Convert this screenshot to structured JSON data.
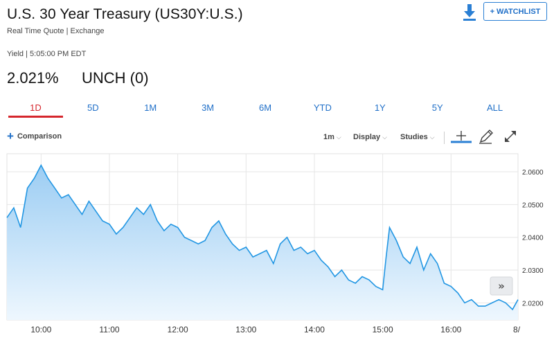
{
  "header": {
    "title": "U.S. 30 Year Treasury (US30Y:U.S.)",
    "subtitle": "Real Time Quote | Exchange",
    "yield_label": "Yield | 5:05:00 PM EDT",
    "price": "2.021%",
    "change": "UNCH (0)",
    "watchlist_label": "+ WATCHLIST"
  },
  "tabs": [
    {
      "label": "1D",
      "active": true
    },
    {
      "label": "5D",
      "active": false
    },
    {
      "label": "1M",
      "active": false
    },
    {
      "label": "3M",
      "active": false
    },
    {
      "label": "6M",
      "active": false
    },
    {
      "label": "YTD",
      "active": false
    },
    {
      "label": "1Y",
      "active": false
    },
    {
      "label": "5Y",
      "active": false
    },
    {
      "label": "ALL",
      "active": false
    }
  ],
  "toolbar": {
    "comparison": "Comparison",
    "interval": "1m",
    "display": "Display",
    "studies": "Studies"
  },
  "colors": {
    "accent": "#1f6fc8",
    "active_tab": "#d5262c",
    "line": "#2196e3",
    "fill_top": "#9ccdf3",
    "fill_bottom": "#eef7fe"
  },
  "icons": {
    "download": "download-icon",
    "crosshair": "crosshair-icon",
    "draw": "pencil-icon",
    "expand": "expand-icon",
    "forward": "double-chevron-right-icon"
  },
  "chart_data": {
    "type": "area",
    "x_ticks": [
      "10:00",
      "11:00",
      "12:00",
      "13:00",
      "14:00",
      "15:00",
      "16:00",
      "8/"
    ],
    "y_ticks": [
      "2.0600",
      "2.0500",
      "2.0400",
      "2.0300",
      "2.0200"
    ],
    "y_tick_values": [
      2.06,
      2.05,
      2.04,
      2.03,
      2.02
    ],
    "ylim": [
      2.0148,
      2.0655
    ],
    "xlim": [
      9.5,
      16.98
    ],
    "grid": true,
    "x": [
      9.5,
      9.6,
      9.7,
      9.8,
      9.9,
      10.0,
      10.1,
      10.2,
      10.3,
      10.4,
      10.5,
      10.6,
      10.7,
      10.8,
      10.9,
      11.0,
      11.1,
      11.2,
      11.3,
      11.4,
      11.5,
      11.6,
      11.7,
      11.8,
      11.9,
      12.0,
      12.1,
      12.2,
      12.3,
      12.4,
      12.5,
      12.6,
      12.7,
      12.8,
      12.9,
      13.0,
      13.1,
      13.2,
      13.3,
      13.4,
      13.5,
      13.6,
      13.7,
      13.8,
      13.9,
      14.0,
      14.1,
      14.2,
      14.3,
      14.4,
      14.5,
      14.6,
      14.7,
      14.8,
      14.9,
      15.0,
      15.05,
      15.1,
      15.2,
      15.3,
      15.4,
      15.5,
      15.6,
      15.7,
      15.8,
      15.9,
      16.0,
      16.1,
      16.2,
      16.3,
      16.4,
      16.5,
      16.6,
      16.7,
      16.8,
      16.9,
      16.98
    ],
    "values": [
      2.046,
      2.049,
      2.043,
      2.055,
      2.058,
      2.062,
      2.058,
      2.055,
      2.052,
      2.053,
      2.05,
      2.047,
      2.051,
      2.048,
      2.045,
      2.044,
      2.041,
      2.043,
      2.046,
      2.049,
      2.047,
      2.05,
      2.045,
      2.042,
      2.044,
      2.043,
      2.04,
      2.039,
      2.038,
      2.039,
      2.043,
      2.045,
      2.041,
      2.038,
      2.036,
      2.037,
      2.034,
      2.035,
      2.036,
      2.032,
      2.038,
      2.04,
      2.036,
      2.037,
      2.035,
      2.036,
      2.033,
      2.031,
      2.028,
      2.03,
      2.027,
      2.026,
      2.028,
      2.027,
      2.025,
      2.024,
      2.034,
      2.043,
      2.039,
      2.034,
      2.032,
      2.037,
      2.03,
      2.035,
      2.032,
      2.026,
      2.025,
      2.023,
      2.02,
      2.021,
      2.019,
      2.019,
      2.02,
      2.021,
      2.02,
      2.018,
      2.021
    ],
    "series": [
      {
        "name": "US30Y"
      }
    ]
  }
}
